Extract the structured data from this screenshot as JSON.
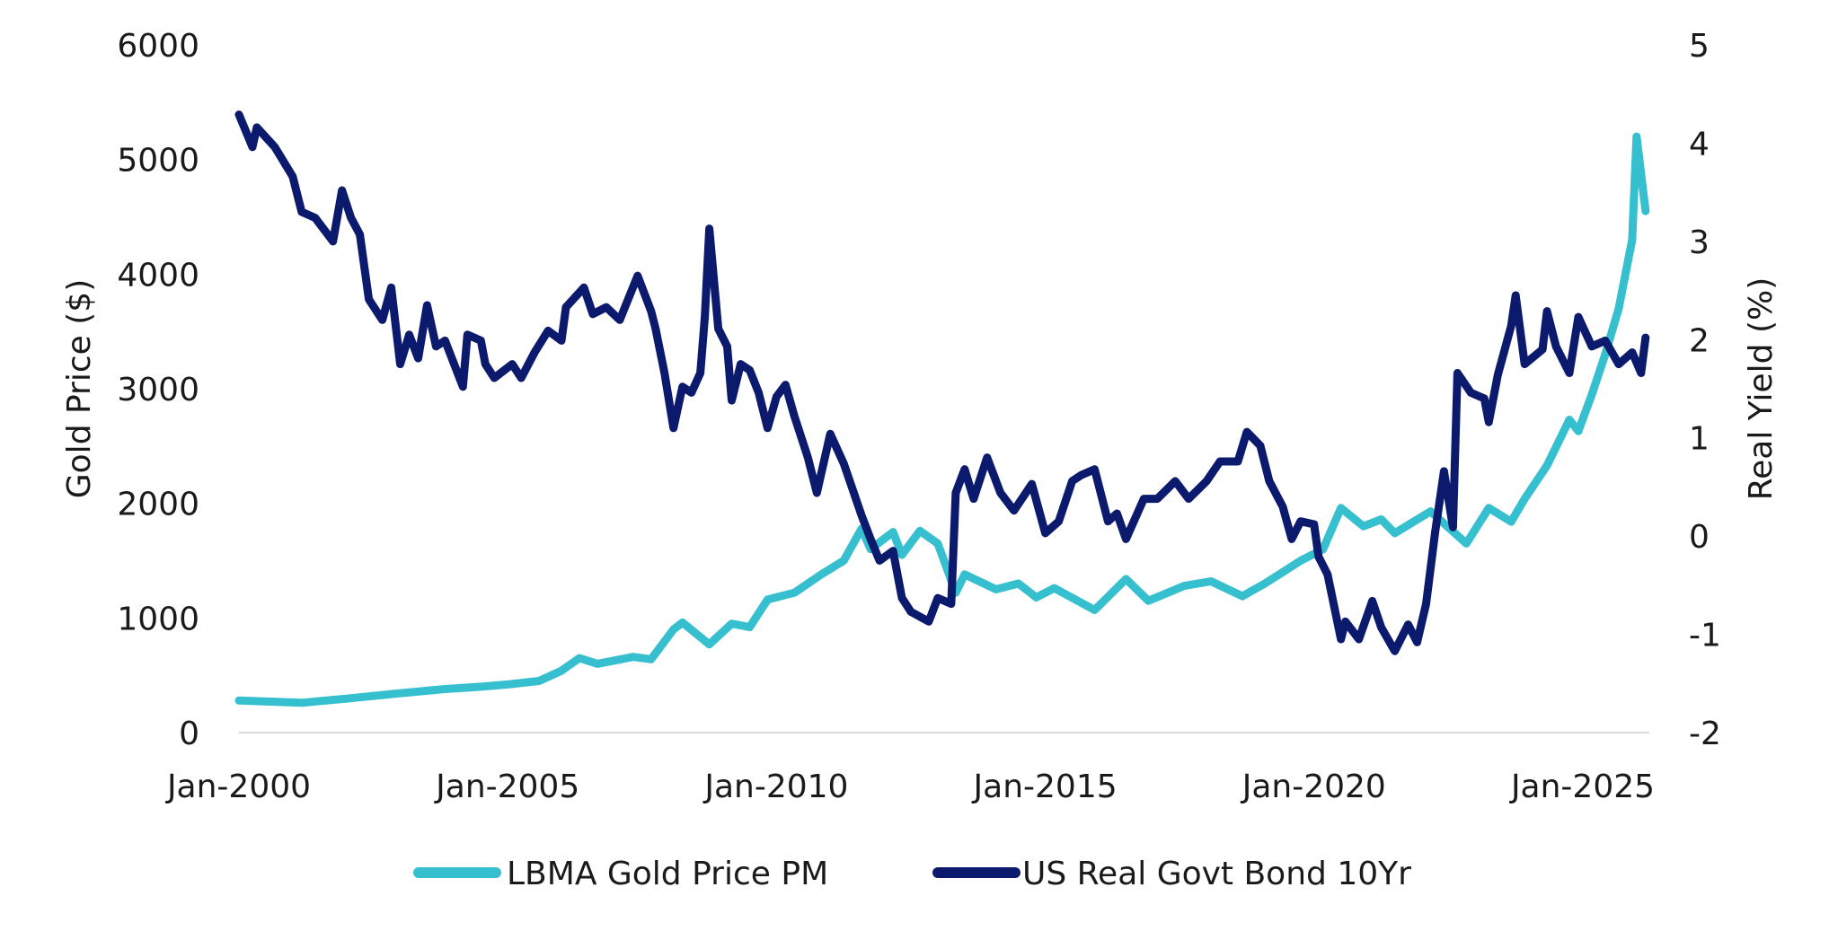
{
  "chart_data": {
    "type": "line",
    "title": "",
    "xlabel": "",
    "ylabel_left": "Gold Price ($)",
    "ylabel_right": "Real Yield (%)",
    "x_ticks": [
      "Jan-2000",
      "Jan-2005",
      "Jan-2010",
      "Jan-2015",
      "Jan-2020",
      "Jan-2025"
    ],
    "y_left_ticks": [
      "0",
      "1000",
      "2000",
      "3000",
      "4000",
      "5000",
      "6000"
    ],
    "y_right_ticks": [
      "-2",
      "-1",
      "0",
      "1",
      "2",
      "3",
      "4",
      "5"
    ],
    "ylim_left": [
      0,
      6000
    ],
    "ylim_right": [
      -2,
      5
    ],
    "grid": false,
    "legend_position": "bottom",
    "series": [
      {
        "name": "LBMA Gold Price PM",
        "axis": "left",
        "color": "#35BFCF",
        "points": [
          [
            "2000-01",
            280
          ],
          [
            "2001-03",
            260
          ],
          [
            "2002-02",
            300
          ],
          [
            "2002-12",
            340
          ],
          [
            "2003-11",
            380
          ],
          [
            "2004-07",
            400
          ],
          [
            "2005-01",
            420
          ],
          [
            "2005-08",
            450
          ],
          [
            "2006-01",
            540
          ],
          [
            "2006-05",
            650
          ],
          [
            "2006-09",
            600
          ],
          [
            "2007-05",
            660
          ],
          [
            "2007-09",
            640
          ],
          [
            "2008-02",
            900
          ],
          [
            "2008-04",
            960
          ],
          [
            "2008-10",
            770
          ],
          [
            "2009-03",
            950
          ],
          [
            "2009-07",
            920
          ],
          [
            "2009-11",
            1160
          ],
          [
            "2010-05",
            1220
          ],
          [
            "2010-11",
            1380
          ],
          [
            "2011-04",
            1500
          ],
          [
            "2011-08",
            1780
          ],
          [
            "2011-10",
            1600
          ],
          [
            "2012-03",
            1750
          ],
          [
            "2012-05",
            1550
          ],
          [
            "2012-09",
            1760
          ],
          [
            "2013-01",
            1650
          ],
          [
            "2013-05",
            1220
          ],
          [
            "2013-07",
            1380
          ],
          [
            "2014-02",
            1250
          ],
          [
            "2014-07",
            1300
          ],
          [
            "2014-11",
            1180
          ],
          [
            "2015-03",
            1260
          ],
          [
            "2015-12",
            1070
          ],
          [
            "2016-07",
            1340
          ],
          [
            "2016-12",
            1150
          ],
          [
            "2017-08",
            1280
          ],
          [
            "2018-02",
            1320
          ],
          [
            "2018-09",
            1190
          ],
          [
            "2019-02",
            1300
          ],
          [
            "2019-06",
            1400
          ],
          [
            "2019-10",
            1500
          ],
          [
            "2020-03",
            1600
          ],
          [
            "2020-07",
            1960
          ],
          [
            "2020-12",
            1800
          ],
          [
            "2021-04",
            1860
          ],
          [
            "2021-07",
            1740
          ],
          [
            "2022-03",
            1930
          ],
          [
            "2022-11",
            1650
          ],
          [
            "2023-04",
            1960
          ],
          [
            "2023-09",
            1840
          ],
          [
            "2023-12",
            2040
          ],
          [
            "2024-05",
            2330
          ],
          [
            "2024-10",
            2730
          ],
          [
            "2024-12",
            2630
          ],
          [
            "2025-03",
            2950
          ],
          [
            "2025-06",
            3300
          ],
          [
            "2025-09",
            3700
          ],
          [
            "2025-12",
            4300
          ],
          [
            "2026-01",
            5200
          ],
          [
            "2026-03",
            4550
          ]
        ]
      },
      {
        "name": "US Real Govt Bond 10Yr",
        "axis": "right",
        "color": "#0C1A6E",
        "points": [
          [
            "2000-01",
            4.29
          ],
          [
            "2000-04",
            3.96
          ],
          [
            "2000-05",
            4.16
          ],
          [
            "2000-09",
            3.96
          ],
          [
            "2001-01",
            3.66
          ],
          [
            "2001-03",
            3.3
          ],
          [
            "2001-06",
            3.24
          ],
          [
            "2001-10",
            3.0
          ],
          [
            "2001-12",
            3.52
          ],
          [
            "2002-02",
            3.24
          ],
          [
            "2002-04",
            3.07
          ],
          [
            "2002-06",
            2.41
          ],
          [
            "2002-09",
            2.2
          ],
          [
            "2002-11",
            2.53
          ],
          [
            "2003-01",
            1.75
          ],
          [
            "2003-03",
            2.05
          ],
          [
            "2003-05",
            1.81
          ],
          [
            "2003-07",
            2.35
          ],
          [
            "2003-09",
            1.93
          ],
          [
            "2003-11",
            1.99
          ],
          [
            "2004-03",
            1.52
          ],
          [
            "2004-04",
            2.05
          ],
          [
            "2004-07",
            1.99
          ],
          [
            "2004-08",
            1.75
          ],
          [
            "2004-10",
            1.61
          ],
          [
            "2005-02",
            1.75
          ],
          [
            "2005-04",
            1.61
          ],
          [
            "2005-07",
            1.87
          ],
          [
            "2005-10",
            2.09
          ],
          [
            "2006-01",
            1.99
          ],
          [
            "2006-02",
            2.33
          ],
          [
            "2006-06",
            2.53
          ],
          [
            "2006-08",
            2.26
          ],
          [
            "2006-11",
            2.33
          ],
          [
            "2007-02",
            2.2
          ],
          [
            "2007-06",
            2.65
          ],
          [
            "2007-09",
            2.29
          ],
          [
            "2007-10",
            2.11
          ],
          [
            "2007-12",
            1.66
          ],
          [
            "2008-02",
            1.1
          ],
          [
            "2008-04",
            1.52
          ],
          [
            "2008-06",
            1.46
          ],
          [
            "2008-08",
            1.66
          ],
          [
            "2008-09",
            2.23
          ],
          [
            "2008-10",
            3.13
          ],
          [
            "2008-12",
            2.11
          ],
          [
            "2009-02",
            1.93
          ],
          [
            "2009-03",
            1.38
          ],
          [
            "2009-05",
            1.75
          ],
          [
            "2009-07",
            1.69
          ],
          [
            "2009-09",
            1.46
          ],
          [
            "2009-11",
            1.1
          ],
          [
            "2010-01",
            1.42
          ],
          [
            "2010-03",
            1.54
          ],
          [
            "2010-05",
            1.22
          ],
          [
            "2010-08",
            0.8
          ],
          [
            "2010-10",
            0.44
          ],
          [
            "2011-01",
            1.04
          ],
          [
            "2011-04",
            0.74
          ],
          [
            "2011-08",
            0.21
          ],
          [
            "2011-10",
            -0.03
          ],
          [
            "2011-12",
            -0.25
          ],
          [
            "2012-03",
            -0.15
          ],
          [
            "2012-05",
            -0.63
          ],
          [
            "2012-07",
            -0.77
          ],
          [
            "2012-11",
            -0.87
          ],
          [
            "2013-01",
            -0.63
          ],
          [
            "2013-04",
            -0.69
          ],
          [
            "2013-05",
            0.44
          ],
          [
            "2013-07",
            0.68
          ],
          [
            "2013-09",
            0.38
          ],
          [
            "2013-12",
            0.8
          ],
          [
            "2014-03",
            0.44
          ],
          [
            "2014-06",
            0.26
          ],
          [
            "2014-10",
            0.53
          ],
          [
            "2015-01",
            0.03
          ],
          [
            "2015-04",
            0.15
          ],
          [
            "2015-07",
            0.56
          ],
          [
            "2015-09",
            0.62
          ],
          [
            "2015-12",
            0.68
          ],
          [
            "2016-03",
            0.15
          ],
          [
            "2016-05",
            0.23
          ],
          [
            "2016-07",
            -0.03
          ],
          [
            "2016-11",
            0.38
          ],
          [
            "2017-02",
            0.38
          ],
          [
            "2017-06",
            0.56
          ],
          [
            "2017-09",
            0.38
          ],
          [
            "2018-01",
            0.56
          ],
          [
            "2018-04",
            0.76
          ],
          [
            "2018-08",
            0.76
          ],
          [
            "2018-10",
            1.06
          ],
          [
            "2019-01",
            0.92
          ],
          [
            "2019-03",
            0.56
          ],
          [
            "2019-06",
            0.3
          ],
          [
            "2019-08",
            -0.03
          ],
          [
            "2019-10",
            0.15
          ],
          [
            "2020-01",
            0.12
          ],
          [
            "2020-02",
            -0.21
          ],
          [
            "2020-04",
            -0.39
          ],
          [
            "2020-07",
            -1.05
          ],
          [
            "2020-08",
            -0.87
          ],
          [
            "2020-11",
            -1.05
          ],
          [
            "2021-02",
            -0.66
          ],
          [
            "2021-04",
            -0.93
          ],
          [
            "2021-07",
            -1.17
          ],
          [
            "2021-10",
            -0.9
          ],
          [
            "2021-12",
            -1.08
          ],
          [
            "2022-02",
            -0.69
          ],
          [
            "2022-04",
            0.03
          ],
          [
            "2022-06",
            0.66
          ],
          [
            "2022-08",
            0.09
          ],
          [
            "2022-09",
            1.66
          ],
          [
            "2022-12",
            1.46
          ],
          [
            "2023-03",
            1.4
          ],
          [
            "2023-04",
            1.16
          ],
          [
            "2023-06",
            1.64
          ],
          [
            "2023-09",
            2.14
          ],
          [
            "2023-10",
            2.45
          ],
          [
            "2023-12",
            1.75
          ],
          [
            "2024-04",
            1.9
          ],
          [
            "2024-05",
            2.29
          ],
          [
            "2024-07",
            1.93
          ],
          [
            "2024-10",
            1.66
          ],
          [
            "2024-12",
            2.23
          ],
          [
            "2025-03",
            1.93
          ],
          [
            "2025-06",
            1.99
          ],
          [
            "2025-09",
            1.75
          ],
          [
            "2025-12",
            1.87
          ],
          [
            "2026-02",
            1.66
          ],
          [
            "2026-03",
            2.02
          ]
        ]
      }
    ]
  }
}
